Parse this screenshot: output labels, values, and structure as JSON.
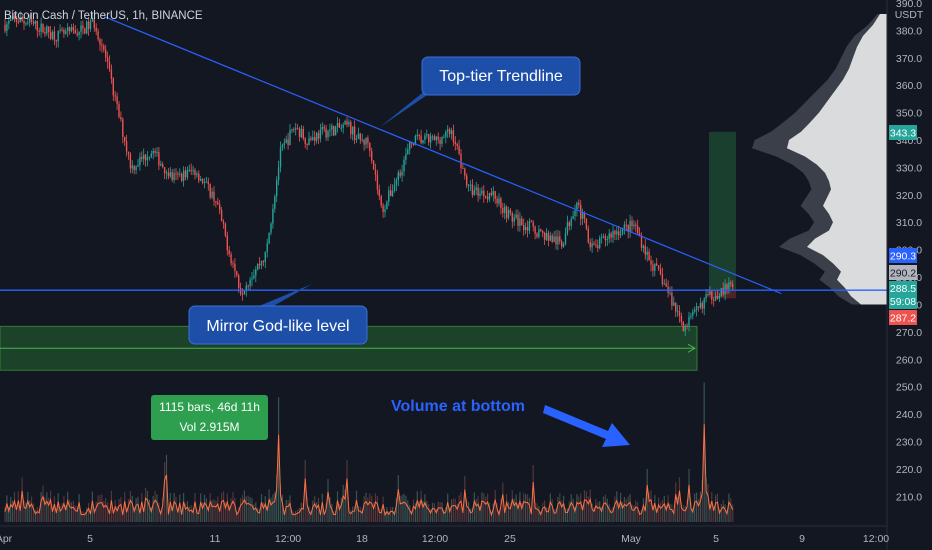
{
  "header": {
    "title": "Bitcoin Cash / TetherUS, 1h, BINANCE"
  },
  "annotations": {
    "trendline_label": "Top-tier Trendline",
    "level_label": "Mirror God-like level",
    "volume_label": "Volume at bottom",
    "measure_line1": "1115 bars, 46d 11h",
    "measure_line2": "Vol 2.915M"
  },
  "price_badges": {
    "b1": "343.3",
    "b2": "290.3",
    "b3": "290.2",
    "b4": "288.5",
    "b4_timer": "59:08",
    "b5": "287.2"
  },
  "colors": {
    "background": "#131722",
    "up": "#26a69a",
    "down": "#ef5350",
    "trendline": "#2962ff",
    "callout": "#1e4fa8",
    "zone": "#1f4a2c",
    "measure": "#2e9e4f",
    "volume_label": "#2962ff"
  },
  "chart_data": {
    "type": "candlestick",
    "symbol": "Bitcoin Cash / TetherUS",
    "interval": "1h",
    "exchange": "BINANCE",
    "y_axis": {
      "unit": "USDT",
      "ylim": [
        205,
        390
      ],
      "ticks": [
        "390.0",
        "380.0",
        "370.0",
        "360.0",
        "350.0",
        "340.0",
        "330.0",
        "320.0",
        "310.0",
        "300.0",
        "290.0",
        "280.0",
        "270.0",
        "260.0",
        "250.0",
        "240.0",
        "230.0",
        "220.0",
        "210.0"
      ]
    },
    "x_axis": {
      "ticks": [
        "Apr",
        "5",
        "11",
        "12:00",
        "18",
        "12:00",
        "25",
        "May",
        "5",
        "9",
        "12:00"
      ]
    },
    "price_path": [
      [
        0,
        382
      ],
      [
        0.6,
        384
      ],
      [
        1.4,
        382
      ],
      [
        2.5,
        378
      ],
      [
        3.7,
        380
      ],
      [
        4.3,
        383
      ],
      [
        4.8,
        372
      ],
      [
        5.4,
        352
      ],
      [
        6.1,
        330
      ],
      [
        7.1,
        336
      ],
      [
        8.1,
        326
      ],
      [
        9.2,
        329
      ],
      [
        10.2,
        318
      ],
      [
        10.8,
        300
      ],
      [
        11.4,
        285
      ],
      [
        12.1,
        293
      ],
      [
        12.6,
        298
      ],
      [
        13.3,
        335
      ],
      [
        14,
        345
      ],
      [
        14.6,
        340
      ],
      [
        15.4,
        343
      ],
      [
        16.6,
        345
      ],
      [
        17.1,
        340
      ],
      [
        17.6,
        339
      ],
      [
        18.2,
        314
      ],
      [
        18.7,
        322
      ],
      [
        19.7,
        340
      ],
      [
        20.8,
        340
      ],
      [
        21.6,
        343
      ],
      [
        22.4,
        322
      ],
      [
        23.6,
        320
      ],
      [
        24.4,
        312
      ],
      [
        25.9,
        306
      ],
      [
        26.9,
        302
      ],
      [
        27.6,
        318
      ],
      [
        28.4,
        300
      ],
      [
        29.3,
        306
      ],
      [
        30.4,
        309
      ],
      [
        31.2,
        295
      ],
      [
        31.7,
        290
      ],
      [
        32.3,
        280
      ],
      [
        32.8,
        272
      ],
      [
        33.3,
        276
      ],
      [
        33.8,
        282
      ],
      [
        34.6,
        285
      ],
      [
        35.2,
        287
      ]
    ],
    "trendline": {
      "start": [
        4.8,
        385
      ],
      "end": [
        37.5,
        284
      ]
    },
    "horizontal_level": 285.2,
    "support_zone": [
      256,
      272
    ],
    "support_line": 264,
    "projection_zone": [
      284,
      343
    ],
    "volume_spikes": [
      {
        "x": 13.2,
        "value": 2.1
      },
      {
        "x": 33.8,
        "value": 2.4
      }
    ],
    "volume_profile": [
      [
        386,
        7
      ],
      [
        382,
        14
      ],
      [
        378,
        24
      ],
      [
        374,
        30
      ],
      [
        370,
        34
      ],
      [
        366,
        38
      ],
      [
        362,
        44
      ],
      [
        358,
        52
      ],
      [
        354,
        60
      ],
      [
        350,
        68
      ],
      [
        346,
        78
      ],
      [
        343,
        86
      ],
      [
        340,
        98
      ],
      [
        337,
        100
      ],
      [
        334,
        82
      ],
      [
        331,
        70
      ],
      [
        328,
        62
      ],
      [
        325,
        58
      ],
      [
        322,
        56
      ],
      [
        319,
        60
      ],
      [
        316,
        64
      ],
      [
        313,
        58
      ],
      [
        310,
        54
      ],
      [
        307,
        58
      ],
      [
        304,
        72
      ],
      [
        301,
        80
      ],
      [
        298,
        64
      ],
      [
        295,
        54
      ],
      [
        292,
        46
      ],
      [
        289,
        50
      ],
      [
        286,
        42
      ],
      [
        283,
        36
      ],
      [
        280,
        26
      ]
    ]
  }
}
